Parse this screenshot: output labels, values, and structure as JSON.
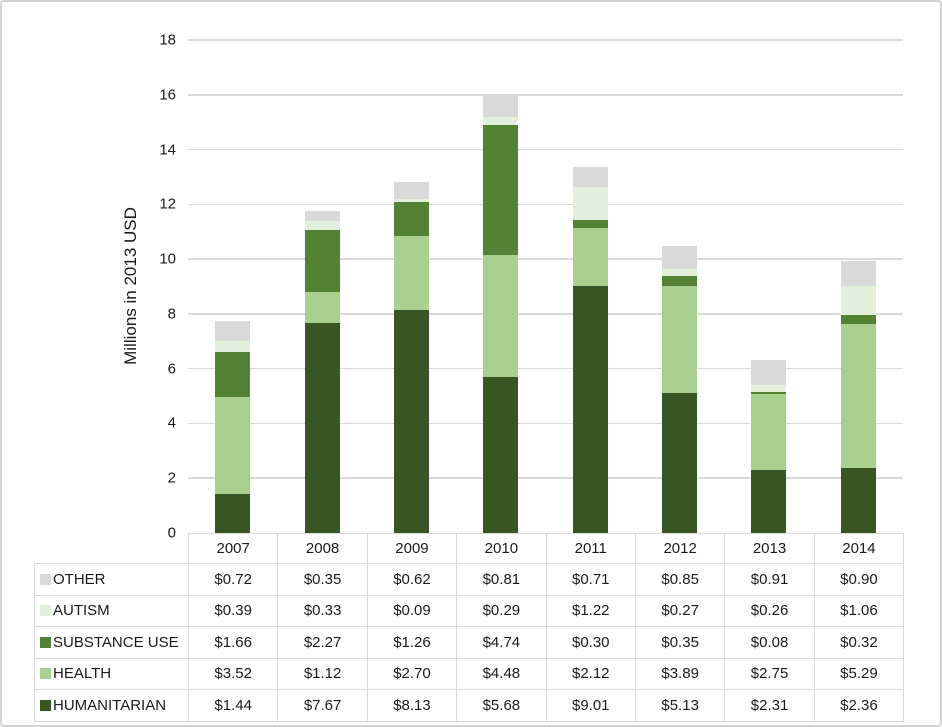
{
  "chart_data": {
    "type": "bar",
    "stacked": true,
    "title": "",
    "xlabel": "",
    "ylabel": "Millions in 2013 USD",
    "ylim": [
      0,
      18
    ],
    "ytick_step": 2,
    "yticks": [
      0,
      2,
      4,
      6,
      8,
      10,
      12,
      14,
      16,
      18
    ],
    "grid": true,
    "legend_position": "table-left",
    "categories": [
      "2007",
      "2008",
      "2009",
      "2010",
      "2011",
      "2012",
      "2013",
      "2014"
    ],
    "series": [
      {
        "name": "HUMANITARIAN",
        "color": "#375623",
        "values": [
          1.44,
          7.67,
          8.13,
          5.68,
          9.01,
          5.13,
          2.31,
          2.36
        ]
      },
      {
        "name": "HEALTH",
        "color": "#a9d08e",
        "values": [
          3.52,
          1.12,
          2.7,
          4.48,
          2.12,
          3.89,
          2.75,
          5.29
        ]
      },
      {
        "name": "SUBSTANCE USE",
        "color": "#548235",
        "values": [
          1.66,
          2.27,
          1.26,
          4.74,
          0.3,
          0.35,
          0.08,
          0.32
        ]
      },
      {
        "name": "AUTISM",
        "color": "#e2efda",
        "values": [
          0.39,
          0.33,
          0.09,
          0.29,
          1.22,
          0.27,
          0.26,
          1.06
        ]
      },
      {
        "name": "OTHER",
        "color": "#d9d9d9",
        "values": [
          0.72,
          0.35,
          0.62,
          0.81,
          0.71,
          0.85,
          0.91,
          0.9
        ]
      }
    ]
  },
  "table": {
    "corner_label": "",
    "columns": [
      "2007",
      "2008",
      "2009",
      "2010",
      "2011",
      "2012",
      "2013",
      "2014"
    ],
    "rows": [
      {
        "label": "OTHER",
        "swatch_color": "#d9d9d9",
        "values": [
          "$0.72",
          "$0.35",
          "$0.62",
          "$0.81",
          "$0.71",
          "$0.85",
          "$0.91",
          "$0.90"
        ]
      },
      {
        "label": "AUTISM",
        "swatch_color": "#e2efda",
        "values": [
          "$0.39",
          "$0.33",
          "$0.09",
          "$0.29",
          "$1.22",
          "$0.27",
          "$0.26",
          "$1.06"
        ]
      },
      {
        "label": "SUBSTANCE USE",
        "swatch_color": "#548235",
        "values": [
          "$1.66",
          "$2.27",
          "$1.26",
          "$4.74",
          "$0.30",
          "$0.35",
          "$0.08",
          "$0.32"
        ]
      },
      {
        "label": "HEALTH",
        "swatch_color": "#a9d08e",
        "values": [
          "$3.52",
          "$1.12",
          "$2.70",
          "$4.48",
          "$2.12",
          "$3.89",
          "$2.75",
          "$5.29"
        ]
      },
      {
        "label": "HUMANITARIAN",
        "swatch_color": "#375623",
        "values": [
          "$1.44",
          "$7.67",
          "$8.13",
          "$5.68",
          "$9.01",
          "$5.13",
          "$2.31",
          "$2.36"
        ]
      }
    ]
  },
  "colors": {
    "gridline": "#d9d9d9",
    "table_border": "#d9d9d9",
    "frame_border": "#d3d3d3",
    "text": "#1a1a1a"
  }
}
